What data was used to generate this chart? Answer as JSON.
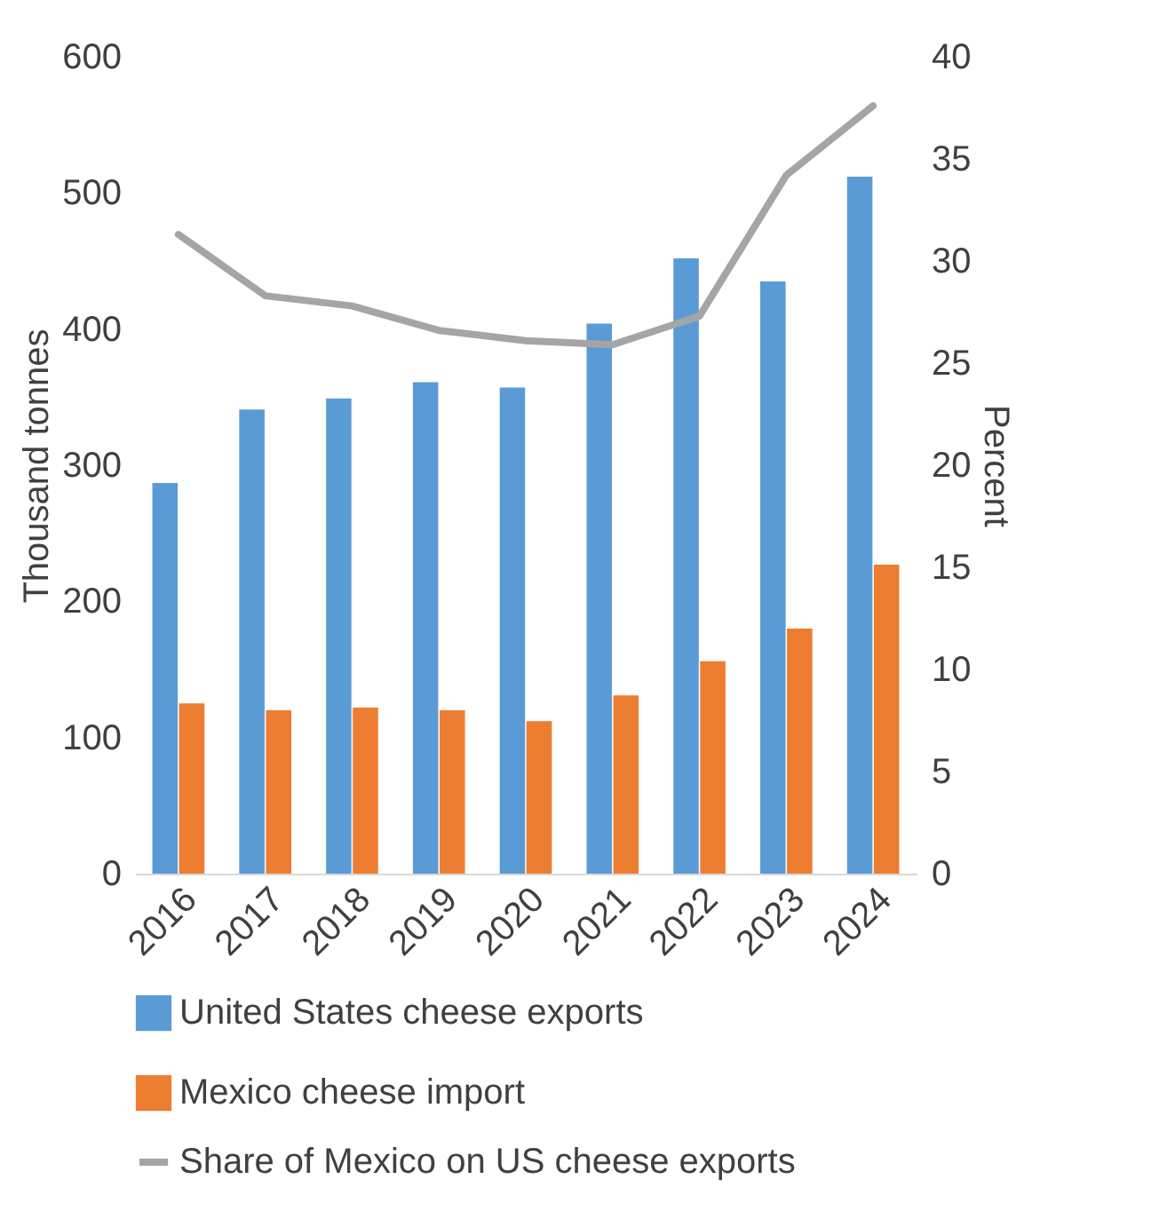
{
  "chart_data": {
    "type": "bar",
    "ylabel": "Thousand tonnes",
    "y2label": "Percent",
    "categories": [
      "2016",
      "2017",
      "2018",
      "2019",
      "2020",
      "2021",
      "2022",
      "2023",
      "2024"
    ],
    "series": [
      {
        "name": "United States cheese exports",
        "color": "#5b9bd5",
        "values": [
          287,
          341,
          349,
          361,
          357,
          404,
          452,
          435,
          512
        ]
      },
      {
        "name": "Mexico cheese import",
        "color": "#ed7d31",
        "values": [
          125,
          120,
          122,
          120,
          112,
          131,
          156,
          180,
          227
        ]
      },
      {
        "name": "Share of Mexico on US cheese exports",
        "type": "line",
        "axis": "y2",
        "color": "#a5a5a5",
        "values": [
          31.3,
          28.3,
          27.8,
          26.6,
          26.1,
          25.9,
          27.3,
          34.2,
          37.6
        ]
      }
    ],
    "ylim": [
      0,
      600
    ],
    "yticks": [
      0,
      100,
      200,
      300,
      400,
      500,
      600
    ],
    "y2lim": [
      0,
      40
    ],
    "y2ticks": [
      0,
      5,
      10,
      15,
      20,
      25,
      30,
      35,
      40
    ],
    "grid": false,
    "legend": "bottom",
    "marker": "none",
    "line_style": "solid"
  }
}
